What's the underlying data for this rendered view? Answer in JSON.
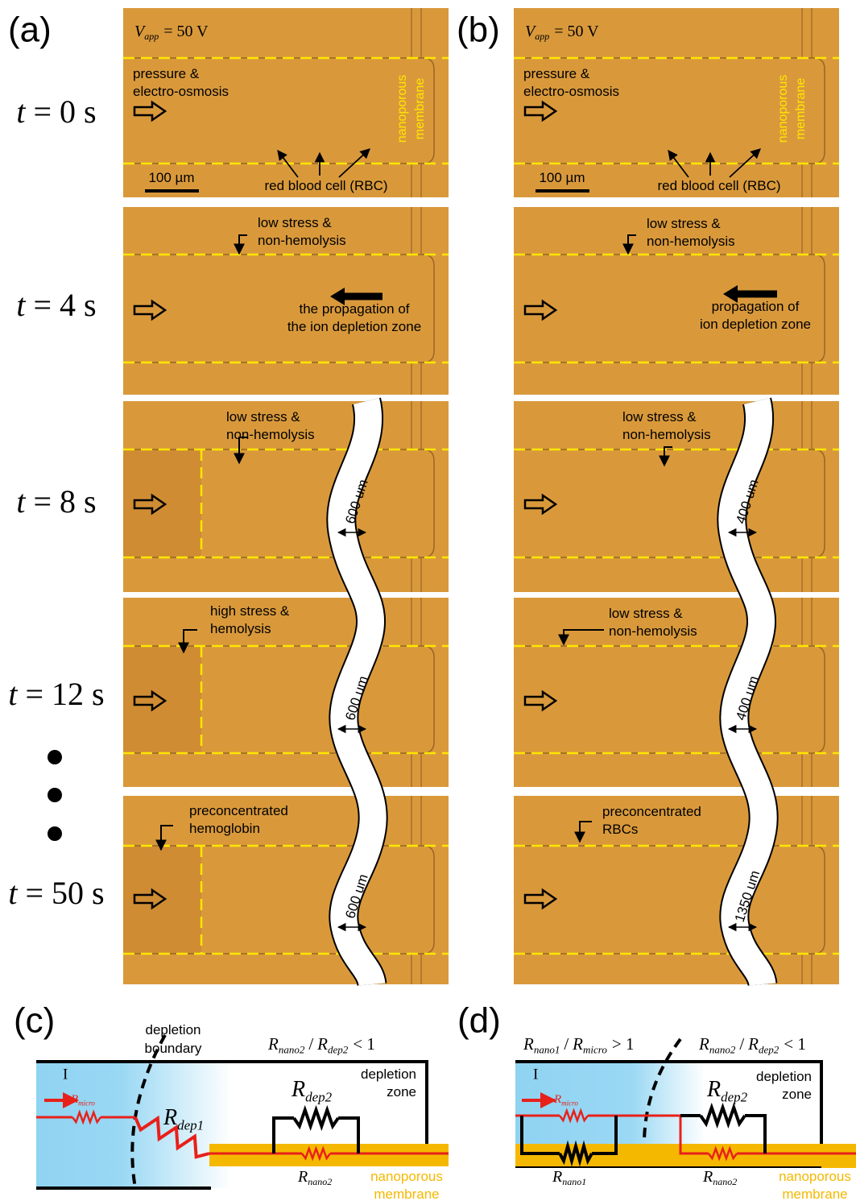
{
  "panels": [
    {
      "label": "(a)",
      "voltage": {
        "symbol": "V",
        "subscript": "app",
        "rest": "= 50 V"
      },
      "frames": [
        {
          "annotations": [
            [
              "pressure &",
              "electro-osmosis"
            ],
            [
              "nanoporous",
              "membrane"
            ],
            [
              "100 µm"
            ],
            [
              "red blood cell (RBC)"
            ]
          ]
        },
        {
          "annotations": [
            [
              "low stress &",
              "non-hemolysis"
            ],
            [
              "the propagation of",
              "the ion depletion zone"
            ]
          ]
        },
        {
          "annotations": [
            [
              "low stress &",
              "non-hemolysis"
            ]
          ],
          "gap": "600 um"
        },
        {
          "annotations": [
            [
              "high stress &",
              "hemolysis"
            ]
          ],
          "gap": "600 um"
        },
        {
          "annotations": [
            [
              "preconcentrated",
              "hemoglobin"
            ]
          ],
          "gap": "600 um"
        }
      ]
    },
    {
      "label": "(b)",
      "voltage": {
        "symbol": "V",
        "subscript": "app",
        "rest": "= 50 V"
      },
      "frames": [
        {
          "annotations": [
            [
              "pressure &",
              "electro-osmosis"
            ],
            [
              "nanoporous",
              "membrane"
            ],
            [
              "100 µm"
            ],
            [
              "red blood cell (RBC)"
            ]
          ]
        },
        {
          "annotations": [
            [
              "low stress &",
              "non-hemolysis"
            ],
            [
              "propagation of",
              "ion depletion zone"
            ]
          ]
        },
        {
          "annotations": [
            [
              "low stress &",
              "non-hemolysis"
            ]
          ],
          "gap": "400 um"
        },
        {
          "annotations": [
            [
              "low stress &",
              "non-hemolysis"
            ]
          ],
          "gap": "400 um"
        },
        {
          "annotations": [
            [
              "preconcentrated",
              "RBCs"
            ]
          ],
          "gap": "1350 um"
        }
      ]
    }
  ],
  "times": [
    {
      "symbol": "t",
      "rest": "= 0 s"
    },
    {
      "symbol": "t",
      "rest": "= 4 s"
    },
    {
      "symbol": "t",
      "rest": "= 8 s"
    },
    {
      "symbol": "t",
      "rest": "= 12 s"
    },
    {
      "symbol": "t",
      "rest": "= 50 s"
    }
  ],
  "circuits": [
    {
      "label": "(c)",
      "boundary": [
        "depletion",
        "boundary"
      ],
      "ratios": [
        {
          "num": {
            "symbol": "R",
            "subscript": "nano2"
          },
          "op": "/",
          "den": {
            "symbol": "R",
            "subscript": "dep2"
          },
          "relation": "< 1"
        }
      ],
      "zone": [
        "depletion",
        "zone"
      ],
      "current": "I",
      "resistors": [
        {
          "symbol": "R",
          "subscript": "micro"
        },
        {
          "symbol": "R",
          "subscript": "dep1"
        },
        {
          "symbol": "R",
          "subscript": "dep2"
        },
        {
          "symbol": "R",
          "subscript": "nano2"
        }
      ],
      "membrane": [
        "nanoporous",
        "membrane"
      ]
    },
    {
      "label": "(d)",
      "ratios": [
        {
          "num": {
            "symbol": "R",
            "subscript": "nano1"
          },
          "op": "/",
          "den": {
            "symbol": "R",
            "subscript": "micro"
          },
          "relation": "> 1"
        },
        {
          "num": {
            "symbol": "R",
            "subscript": "nano2"
          },
          "op": "/",
          "den": {
            "symbol": "R",
            "subscript": "dep2"
          },
          "relation": "< 1"
        }
      ],
      "zone": [
        "depletion",
        "zone"
      ],
      "current": "I",
      "resistors": [
        {
          "symbol": "R",
          "subscript": "micro"
        },
        {
          "symbol": "R",
          "subscript": "dep2"
        },
        {
          "symbol": "R",
          "subscript": "nano1"
        },
        {
          "symbol": "R",
          "subscript": "nano2"
        }
      ],
      "membrane": [
        "nanoporous",
        "membrane"
      ]
    }
  ]
}
